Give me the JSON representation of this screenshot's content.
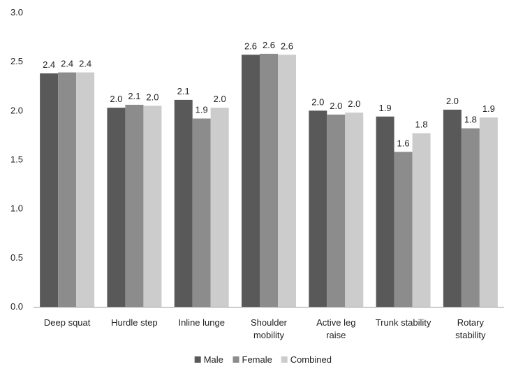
{
  "chart_data": {
    "type": "bar",
    "categories": [
      [
        "Deep squat"
      ],
      [
        "Hurdle step"
      ],
      [
        "Inline lunge"
      ],
      [
        "Shoulder",
        "mobility"
      ],
      [
        "Active leg",
        "raise"
      ],
      [
        "Trunk stability"
      ],
      [
        "Rotary",
        "stability"
      ]
    ],
    "series": [
      {
        "name": "Male",
        "color": "#595959",
        "values": [
          2.38,
          2.03,
          2.11,
          2.57,
          2.0,
          1.94,
          2.01
        ],
        "labels": [
          "2.4",
          "2.0",
          "2.1",
          "2.6",
          "2.0",
          "1.9",
          "2.0"
        ]
      },
      {
        "name": "Female",
        "color": "#8c8c8c",
        "values": [
          2.39,
          2.06,
          1.92,
          2.58,
          1.96,
          1.58,
          1.82
        ],
        "labels": [
          "2.4",
          "2.1",
          "1.9",
          "2.6",
          "2.0",
          "1.6",
          "1.8"
        ]
      },
      {
        "name": "Combined",
        "color": "#cccccc",
        "values": [
          2.39,
          2.05,
          2.03,
          2.57,
          1.98,
          1.77,
          1.93
        ],
        "labels": [
          "2.4",
          "2.0",
          "2.0",
          "2.6",
          "2.0",
          "1.8",
          "1.9"
        ]
      }
    ],
    "ylim": [
      0,
      3.0
    ],
    "yticks": [
      "0.0",
      "0.5",
      "1.0",
      "1.5",
      "2.0",
      "2.5",
      "3.0"
    ],
    "grid": false,
    "legend_position": "bottom",
    "title": "",
    "xlabel": "",
    "ylabel": ""
  }
}
